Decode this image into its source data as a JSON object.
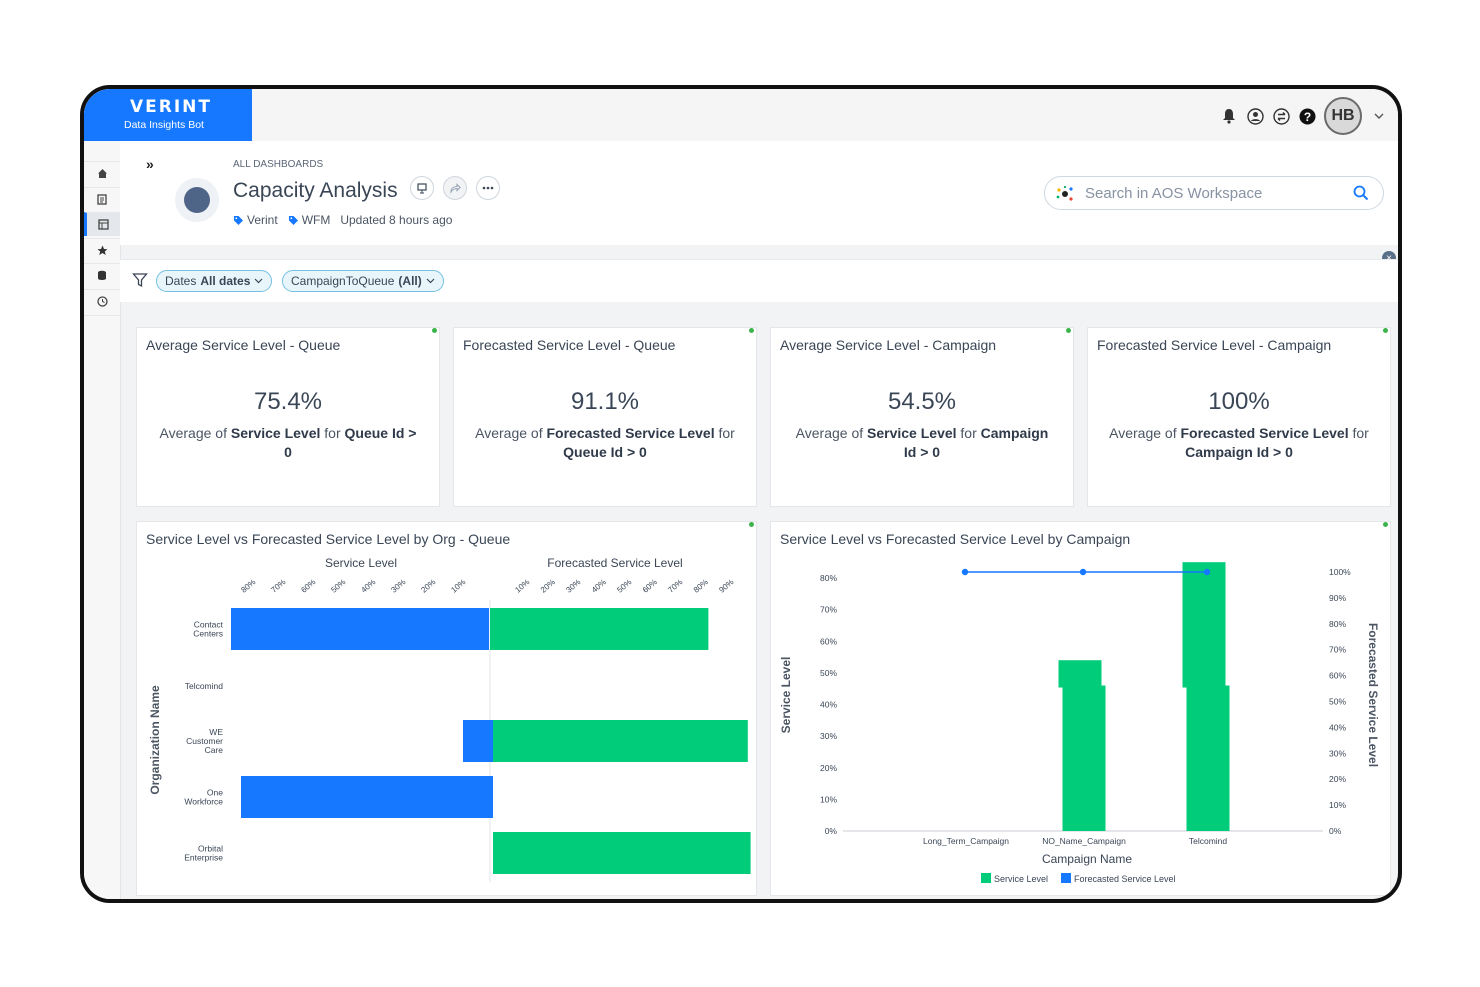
{
  "brand": {
    "name": "VERINT",
    "subtitle": "Data Insights Bot"
  },
  "user": {
    "initials": "HB"
  },
  "header": {
    "breadcrumb": "ALL DASHBOARDS",
    "title": "Capacity Analysis",
    "tags": [
      "Verint",
      "WFM"
    ],
    "updated": "Updated 8 hours ago"
  },
  "search": {
    "placeholder": "Search in AOS Workspace"
  },
  "filters": [
    {
      "label": "Dates",
      "value": "All dates"
    },
    {
      "label": "CampaignToQueue",
      "value": "(All)"
    }
  ],
  "kpis": [
    {
      "title": "Average Service Level - Queue",
      "value": "75.4%",
      "pre": "Average of ",
      "metric": "Service Level",
      "mid": " for ",
      "field": "Queue Id >",
      "tail": "0"
    },
    {
      "title": "Forecasted Service Level - Queue",
      "value": "91.1%",
      "pre": "Average of ",
      "metric": "Forecasted Service Level",
      "mid": " for ",
      "field": "Queue Id > 0",
      "tail": ""
    },
    {
      "title": "Average Service Level - Campaign",
      "value": "54.5%",
      "pre": "Average of ",
      "metric": "Service Level",
      "mid": " for ",
      "field": "Campaign",
      "tail": "Id > 0"
    },
    {
      "title": "Forecasted Service Level - Campaign",
      "value": "100%",
      "pre": "Average of ",
      "metric": "Forecasted Service Level",
      "mid": " for ",
      "field": "Campaign Id > 0",
      "tail": ""
    }
  ],
  "colors": {
    "blue": "#1677ff",
    "green": "#00cc79",
    "accent": "#1677ff"
  },
  "chart_data": [
    {
      "type": "bar",
      "title": "Service Level vs Forecasted Service Level by Org - Queue",
      "ylabel": "Organization Name",
      "left_axis_title": "Service Level",
      "right_axis_title": "Forecasted Service Level",
      "left_ticks": [
        "80%",
        "70%",
        "60%",
        "50%",
        "40%",
        "30%",
        "20%",
        "10%"
      ],
      "right_ticks": [
        "10%",
        "20%",
        "30%",
        "40%",
        "50%",
        "60%",
        "70%",
        "80%",
        "90%"
      ],
      "categories": [
        "Contact\nCenters",
        "Telcomind",
        "WE\nCustomer\nCare",
        "One\nWorkforce",
        "Orbital\nEnterprise"
      ],
      "series": [
        {
          "name": "Service Level",
          "values": [
            86,
            null,
            10,
            84,
            null
          ]
        },
        {
          "name": "Forecasted Service Level",
          "values": [
            78,
            null,
            91,
            null,
            92
          ]
        }
      ]
    },
    {
      "type": "bar",
      "title": "Service Level vs Forecasted Service Level by Campaign",
      "xlabel": "Campaign Name",
      "ylabel": "Service Level",
      "y2label": "Forecasted Service Level",
      "ylim": [
        0,
        80
      ],
      "y2lim": [
        0,
        100
      ],
      "y_ticks": [
        "0%",
        "10%",
        "20%",
        "30%",
        "40%",
        "50%",
        "60%",
        "70%",
        "80%"
      ],
      "y2_ticks": [
        "0%",
        "10%",
        "20%",
        "30%",
        "40%",
        "50%",
        "60%",
        "70%",
        "80%",
        "90%",
        "100%"
      ],
      "categories": [
        "Long_Term_Campaign",
        "NO_Name_Campaign",
        "Telcomind"
      ],
      "series": [
        {
          "name": "Service Level",
          "values": [
            0,
            46,
            46
          ]
        },
        {
          "name": "Forecasted Service Level",
          "values": [
            100,
            100,
            100
          ]
        }
      ],
      "extra_bars": [
        null,
        54,
        85
      ],
      "legend": [
        "Service Level",
        "Forecasted Service Level"
      ]
    }
  ]
}
